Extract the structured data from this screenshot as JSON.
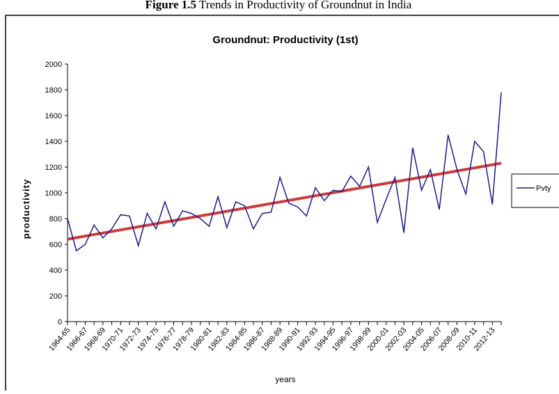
{
  "caption": {
    "label": "Figure 1.5",
    "text": "Trends in Productivity of Groundnut in India"
  },
  "chart_data": {
    "type": "line",
    "title": "Groundnut: Productivity (1st)",
    "x_label": "years",
    "y_label": "productivity",
    "categories": [
      "1964-65",
      null,
      "1966-67",
      null,
      "1968-69",
      null,
      "1970-71",
      null,
      "1972-73",
      null,
      "1974-75",
      null,
      "1976-77",
      null,
      "1978-79",
      null,
      "1980-81",
      null,
      "1982-83",
      null,
      "1984-85",
      null,
      "1986-87",
      null,
      "1988-89",
      null,
      "1990-91",
      null,
      "1992-93",
      null,
      "1994-95",
      null,
      "1996-97",
      null,
      "1998-99",
      null,
      "2000-01",
      null,
      "2002-03",
      null,
      "2004-05",
      null,
      "2006-07",
      null,
      "2008-09",
      null,
      "2010-11",
      null,
      "2012-13",
      null
    ],
    "series": [
      {
        "name": "Pvty",
        "color": "#1a1a8c",
        "values": [
          800,
          550,
          600,
          750,
          650,
          720,
          830,
          820,
          590,
          840,
          720,
          930,
          740,
          860,
          840,
          800,
          740,
          970,
          730,
          930,
          900,
          720,
          840,
          850,
          1120,
          920,
          890,
          820,
          1040,
          940,
          1020,
          1010,
          1130,
          1050,
          1200,
          770,
          950,
          1120,
          690,
          1350,
          1020,
          1180,
          870,
          1450,
          1180,
          990,
          1400,
          1320,
          910,
          1780
        ]
      }
    ],
    "trendline": {
      "start": 640,
      "end": 1230,
      "color": "#cc3b3b"
    },
    "ylim": [
      0,
      2000
    ],
    "yticks": [
      0,
      200,
      400,
      600,
      800,
      1000,
      1200,
      1400,
      1600,
      1800,
      2000
    ],
    "legend": "right"
  }
}
